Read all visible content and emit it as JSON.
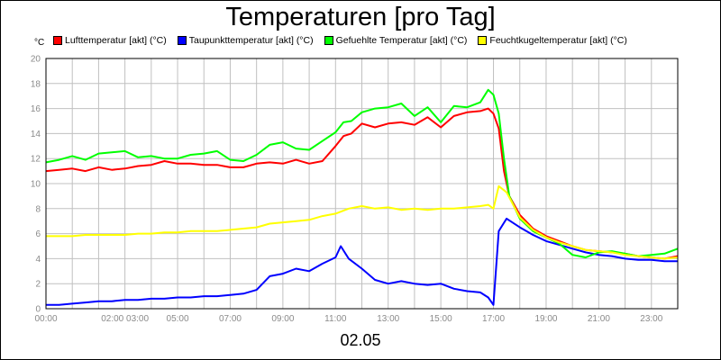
{
  "chart_data": {
    "type": "line",
    "title": "Temperaturen [pro Tag]",
    "ylabel": "°C",
    "xlabel": "02.05",
    "ylim": [
      0,
      20
    ],
    "yticks": [
      0,
      2,
      4,
      6,
      8,
      10,
      12,
      14,
      16,
      18,
      20
    ],
    "xlim": [
      0,
      24
    ],
    "xticks": [
      {
        "value": 0,
        "label": "00:00"
      },
      {
        "value": 3,
        "label": "02:00 03:00"
      },
      {
        "value": 5,
        "label": "05:00"
      },
      {
        "value": 7,
        "label": "07:00"
      },
      {
        "value": 9,
        "label": "09:00"
      },
      {
        "value": 11,
        "label": "11:00"
      },
      {
        "value": 13,
        "label": "13:00"
      },
      {
        "value": 15,
        "label": "15:00"
      },
      {
        "value": 17,
        "label": "17:00"
      },
      {
        "value": 19,
        "label": "19:00"
      },
      {
        "value": 21,
        "label": "21:00"
      },
      {
        "value": 23,
        "label": "23:00"
      }
    ],
    "grid": true,
    "legend_position": "top",
    "series": [
      {
        "name": "Lufttemperatur [akt] (°C)",
        "color": "#ff0000",
        "points": [
          [
            0,
            11.0
          ],
          [
            0.5,
            11.1
          ],
          [
            1,
            11.2
          ],
          [
            1.5,
            11.0
          ],
          [
            2,
            11.3
          ],
          [
            2.5,
            11.1
          ],
          [
            3,
            11.2
          ],
          [
            3.5,
            11.4
          ],
          [
            4,
            11.5
          ],
          [
            4.5,
            11.8
          ],
          [
            5,
            11.6
          ],
          [
            5.5,
            11.6
          ],
          [
            6,
            11.5
          ],
          [
            6.5,
            11.5
          ],
          [
            7,
            11.3
          ],
          [
            7.5,
            11.3
          ],
          [
            8,
            11.6
          ],
          [
            8.5,
            11.7
          ],
          [
            9,
            11.6
          ],
          [
            9.5,
            11.9
          ],
          [
            10,
            11.6
          ],
          [
            10.5,
            11.8
          ],
          [
            11,
            13.0
          ],
          [
            11.3,
            13.8
          ],
          [
            11.6,
            14.0
          ],
          [
            12,
            14.8
          ],
          [
            12.5,
            14.5
          ],
          [
            13,
            14.8
          ],
          [
            13.5,
            14.9
          ],
          [
            14,
            14.7
          ],
          [
            14.5,
            15.3
          ],
          [
            15,
            14.5
          ],
          [
            15.5,
            15.4
          ],
          [
            16,
            15.7
          ],
          [
            16.5,
            15.8
          ],
          [
            16.8,
            16.0
          ],
          [
            17,
            15.6
          ],
          [
            17.2,
            14.4
          ],
          [
            17.4,
            11.0
          ],
          [
            17.6,
            9.0
          ],
          [
            18,
            7.5
          ],
          [
            18.5,
            6.4
          ],
          [
            19,
            5.8
          ],
          [
            19.5,
            5.4
          ],
          [
            20,
            5.0
          ],
          [
            20.5,
            4.7
          ],
          [
            21,
            4.6
          ],
          [
            21.5,
            4.5
          ],
          [
            22,
            4.4
          ],
          [
            22.5,
            4.2
          ],
          [
            23,
            4.1
          ],
          [
            23.5,
            4.0
          ],
          [
            24,
            4.2
          ]
        ]
      },
      {
        "name": "Taupunkttemperatur [akt] (°C)",
        "color": "#0000ff",
        "points": [
          [
            0,
            0.3
          ],
          [
            0.5,
            0.3
          ],
          [
            1,
            0.4
          ],
          [
            1.5,
            0.5
          ],
          [
            2,
            0.6
          ],
          [
            2.5,
            0.6
          ],
          [
            3,
            0.7
          ],
          [
            3.5,
            0.7
          ],
          [
            4,
            0.8
          ],
          [
            4.5,
            0.8
          ],
          [
            5,
            0.9
          ],
          [
            5.5,
            0.9
          ],
          [
            6,
            1.0
          ],
          [
            6.5,
            1.0
          ],
          [
            7,
            1.1
          ],
          [
            7.5,
            1.2
          ],
          [
            8,
            1.5
          ],
          [
            8.5,
            2.6
          ],
          [
            9,
            2.8
          ],
          [
            9.5,
            3.2
          ],
          [
            10,
            3.0
          ],
          [
            10.5,
            3.6
          ],
          [
            11,
            4.1
          ],
          [
            11.2,
            5.0
          ],
          [
            11.5,
            4.0
          ],
          [
            12,
            3.2
          ],
          [
            12.5,
            2.3
          ],
          [
            13,
            2.0
          ],
          [
            13.5,
            2.2
          ],
          [
            14,
            2.0
          ],
          [
            14.5,
            1.9
          ],
          [
            15,
            2.0
          ],
          [
            15.5,
            1.6
          ],
          [
            16,
            1.4
          ],
          [
            16.5,
            1.3
          ],
          [
            16.8,
            0.9
          ],
          [
            17,
            0.3
          ],
          [
            17.2,
            6.2
          ],
          [
            17.5,
            7.2
          ],
          [
            18,
            6.5
          ],
          [
            18.5,
            5.9
          ],
          [
            19,
            5.4
          ],
          [
            19.5,
            5.1
          ],
          [
            20,
            4.8
          ],
          [
            20.5,
            4.5
          ],
          [
            21,
            4.3
          ],
          [
            21.5,
            4.2
          ],
          [
            22,
            4.0
          ],
          [
            22.5,
            3.9
          ],
          [
            23,
            3.9
          ],
          [
            23.5,
            3.8
          ],
          [
            24,
            3.8
          ]
        ]
      },
      {
        "name": "Gefuehlte Temperatur [akt] (°C)",
        "color": "#00ff00",
        "points": [
          [
            0,
            11.7
          ],
          [
            0.5,
            11.9
          ],
          [
            1,
            12.2
          ],
          [
            1.5,
            11.9
          ],
          [
            2,
            12.4
          ],
          [
            2.5,
            12.5
          ],
          [
            3,
            12.6
          ],
          [
            3.5,
            12.1
          ],
          [
            4,
            12.2
          ],
          [
            4.5,
            12.0
          ],
          [
            5,
            12.0
          ],
          [
            5.5,
            12.3
          ],
          [
            6,
            12.4
          ],
          [
            6.5,
            12.6
          ],
          [
            7,
            11.9
          ],
          [
            7.5,
            11.8
          ],
          [
            8,
            12.3
          ],
          [
            8.5,
            13.1
          ],
          [
            9,
            13.3
          ],
          [
            9.5,
            12.8
          ],
          [
            10,
            12.7
          ],
          [
            10.5,
            13.4
          ],
          [
            11,
            14.1
          ],
          [
            11.3,
            14.9
          ],
          [
            11.6,
            15.0
          ],
          [
            12,
            15.7
          ],
          [
            12.5,
            16.0
          ],
          [
            13,
            16.1
          ],
          [
            13.5,
            16.4
          ],
          [
            14,
            15.4
          ],
          [
            14.5,
            16.1
          ],
          [
            15,
            14.9
          ],
          [
            15.5,
            16.2
          ],
          [
            16,
            16.1
          ],
          [
            16.5,
            16.5
          ],
          [
            16.8,
            17.5
          ],
          [
            17,
            17.1
          ],
          [
            17.2,
            15.6
          ],
          [
            17.4,
            12.0
          ],
          [
            17.6,
            9.0
          ],
          [
            18,
            7.2
          ],
          [
            18.5,
            6.2
          ],
          [
            19,
            5.7
          ],
          [
            19.5,
            5.2
          ],
          [
            20,
            4.3
          ],
          [
            20.5,
            4.1
          ],
          [
            21,
            4.5
          ],
          [
            21.5,
            4.6
          ],
          [
            22,
            4.4
          ],
          [
            22.5,
            4.2
          ],
          [
            23,
            4.3
          ],
          [
            23.5,
            4.4
          ],
          [
            24,
            4.8
          ]
        ]
      },
      {
        "name": "Feuchtkugeltemperatur [akt] (°C)",
        "color": "#ffff00",
        "points": [
          [
            0,
            5.8
          ],
          [
            0.5,
            5.8
          ],
          [
            1,
            5.8
          ],
          [
            1.5,
            5.9
          ],
          [
            2,
            5.9
          ],
          [
            2.5,
            5.9
          ],
          [
            3,
            5.9
          ],
          [
            3.5,
            6.0
          ],
          [
            4,
            6.0
          ],
          [
            4.5,
            6.1
          ],
          [
            5,
            6.1
          ],
          [
            5.5,
            6.2
          ],
          [
            6,
            6.2
          ],
          [
            6.5,
            6.2
          ],
          [
            7,
            6.3
          ],
          [
            7.5,
            6.4
          ],
          [
            8,
            6.5
          ],
          [
            8.5,
            6.8
          ],
          [
            9,
            6.9
          ],
          [
            9.5,
            7.0
          ],
          [
            10,
            7.1
          ],
          [
            10.5,
            7.4
          ],
          [
            11,
            7.6
          ],
          [
            11.5,
            8.0
          ],
          [
            12,
            8.2
          ],
          [
            12.5,
            8.0
          ],
          [
            13,
            8.1
          ],
          [
            13.5,
            7.9
          ],
          [
            14,
            8.0
          ],
          [
            14.5,
            7.9
          ],
          [
            15,
            8.0
          ],
          [
            15.5,
            8.0
          ],
          [
            16,
            8.1
          ],
          [
            16.5,
            8.2
          ],
          [
            16.8,
            8.3
          ],
          [
            17,
            8.0
          ],
          [
            17.2,
            9.8
          ],
          [
            17.5,
            9.3
          ],
          [
            18,
            7.3
          ],
          [
            18.5,
            6.3
          ],
          [
            19,
            5.7
          ],
          [
            19.5,
            5.3
          ],
          [
            20,
            5.0
          ],
          [
            20.5,
            4.7
          ],
          [
            21,
            4.6
          ],
          [
            21.5,
            4.5
          ],
          [
            22,
            4.3
          ],
          [
            22.5,
            4.2
          ],
          [
            23,
            4.1
          ],
          [
            23.5,
            4.0
          ],
          [
            24,
            4.1
          ]
        ]
      }
    ]
  }
}
